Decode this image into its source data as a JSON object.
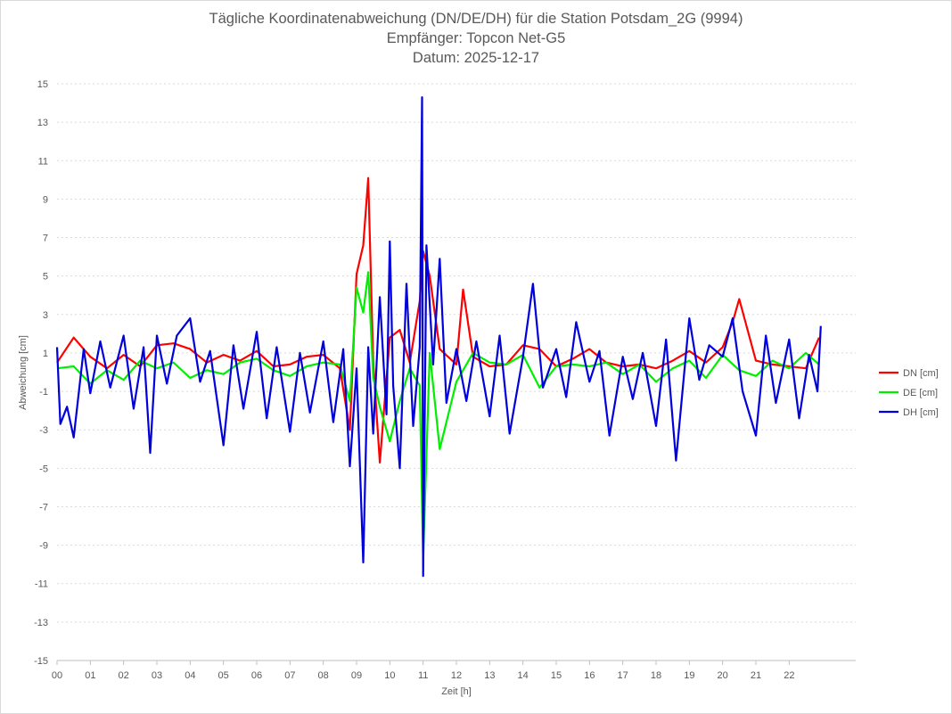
{
  "chart_data": {
    "type": "line",
    "title": "Tägliche Koordinatenabweichung (DN/DE/DH) für die Station Potsdam_2G (9994)",
    "subtitle1": "Empfänger: Topcon Net-G5",
    "subtitle2": "Datum: 2025-12-17",
    "xlabel": "Zeit [h]",
    "ylabel": "Abweichung [cm]",
    "xlim": [
      0,
      24
    ],
    "ylim": [
      -15,
      15
    ],
    "yticks": [
      15,
      13,
      11,
      9,
      7,
      5,
      3,
      1,
      -1,
      -3,
      -5,
      -7,
      -9,
      -11,
      -13,
      -15
    ],
    "xticks": [
      "00",
      "01",
      "02",
      "03",
      "04",
      "05",
      "06",
      "07",
      "08",
      "09",
      "10",
      "11",
      "12",
      "13",
      "14",
      "15",
      "16",
      "17",
      "18",
      "19",
      "20",
      "21",
      "22"
    ],
    "legend_position": "right",
    "grid": "horizontal-dotted",
    "series": [
      {
        "name": "DN [cm]",
        "color": "#ff0000",
        "x": [
          0,
          0.5,
          1,
          1.5,
          2,
          2.5,
          3,
          3.5,
          4,
          4.5,
          5,
          5.5,
          6,
          6.5,
          7,
          7.5,
          8,
          8.5,
          8.8,
          9.0,
          9.2,
          9.35,
          9.5,
          9.7,
          10.0,
          10.3,
          10.6,
          10.9,
          11.0,
          11.2,
          11.5,
          12.0,
          12.2,
          12.5,
          13.0,
          13.5,
          14.0,
          14.5,
          15.0,
          15.5,
          16.0,
          16.5,
          17.0,
          17.5,
          18.0,
          18.5,
          19.0,
          19.5,
          20.0,
          20.3,
          20.5,
          21.0,
          21.5,
          22.0,
          22.5,
          22.9
        ],
        "values": [
          0.5,
          1.8,
          0.8,
          0.2,
          0.9,
          0.3,
          1.4,
          1.5,
          1.2,
          0.5,
          0.9,
          0.6,
          1.1,
          0.3,
          0.4,
          0.8,
          0.9,
          0.2,
          -3.0,
          5.1,
          6.6,
          10.1,
          0.5,
          -4.7,
          1.8,
          2.2,
          0.5,
          3.7,
          6.3,
          5.0,
          1.2,
          0.4,
          4.3,
          0.8,
          0.3,
          0.4,
          1.4,
          1.2,
          0.3,
          0.7,
          1.2,
          0.5,
          0.3,
          0.4,
          0.2,
          0.6,
          1.1,
          0.5,
          1.3,
          2.6,
          3.8,
          0.6,
          0.4,
          0.3,
          0.2,
          1.8
        ]
      },
      {
        "name": "DE [cm]",
        "color": "#00ee00",
        "x": [
          0,
          0.5,
          1,
          1.5,
          2,
          2.5,
          3,
          3.5,
          4,
          4.5,
          5,
          5.5,
          6,
          6.5,
          7,
          7.5,
          8,
          8.5,
          8.8,
          9.0,
          9.2,
          9.35,
          9.5,
          9.7,
          10.0,
          10.3,
          10.6,
          10.9,
          11.0,
          11.2,
          11.5,
          12.0,
          12.5,
          13.0,
          13.5,
          14.0,
          14.5,
          15.0,
          15.5,
          16.0,
          16.5,
          17.0,
          17.5,
          18.0,
          18.5,
          19.0,
          19.5,
          20.0,
          20.5,
          21.0,
          21.5,
          22.0,
          22.5,
          22.9
        ],
        "values": [
          0.2,
          0.3,
          -0.6,
          0.1,
          -0.4,
          0.6,
          0.2,
          0.5,
          -0.3,
          0.1,
          -0.1,
          0.5,
          0.7,
          0.1,
          -0.2,
          0.3,
          0.5,
          0.4,
          -1.5,
          4.4,
          3.1,
          5.2,
          -0.3,
          -1.8,
          -3.6,
          -1.5,
          0.2,
          -0.7,
          -9.7,
          1.0,
          -4.0,
          -0.5,
          1.0,
          0.5,
          0.4,
          0.9,
          -0.8,
          0.3,
          0.4,
          0.3,
          0.5,
          -0.1,
          0.4,
          -0.5,
          0.2,
          0.6,
          -0.3,
          0.9,
          0.1,
          -0.2,
          0.6,
          0.2,
          1.0,
          0.4
        ]
      },
      {
        "name": "DH [cm]",
        "color": "#0000dd",
        "x": [
          0,
          0.1,
          0.3,
          0.5,
          0.8,
          1.0,
          1.3,
          1.6,
          2.0,
          2.3,
          2.6,
          2.8,
          3.0,
          3.3,
          3.6,
          4.0,
          4.3,
          4.6,
          5.0,
          5.3,
          5.6,
          6.0,
          6.3,
          6.6,
          7.0,
          7.3,
          7.6,
          8.0,
          8.3,
          8.6,
          8.8,
          9.0,
          9.2,
          9.35,
          9.5,
          9.7,
          9.9,
          10.0,
          10.1,
          10.3,
          10.5,
          10.7,
          10.9,
          10.97,
          11.0,
          11.1,
          11.3,
          11.5,
          11.7,
          12.0,
          12.3,
          12.6,
          13.0,
          13.3,
          13.6,
          14.0,
          14.3,
          14.6,
          15.0,
          15.3,
          15.6,
          16.0,
          16.3,
          16.6,
          17.0,
          17.3,
          17.6,
          18.0,
          18.3,
          18.6,
          19.0,
          19.3,
          19.6,
          20.0,
          20.3,
          20.6,
          21.0,
          21.3,
          21.6,
          22.0,
          22.3,
          22.6,
          22.85,
          22.95
        ],
        "values": [
          1.3,
          -2.7,
          -1.8,
          -3.4,
          1.2,
          -1.1,
          1.6,
          -0.8,
          1.9,
          -1.9,
          1.3,
          -4.2,
          1.9,
          -0.6,
          1.9,
          2.8,
          -0.5,
          1.1,
          -3.8,
          1.4,
          -1.9,
          2.1,
          -2.4,
          1.3,
          -3.1,
          1.0,
          -2.1,
          1.6,
          -2.6,
          1.2,
          -4.9,
          0.2,
          -9.9,
          1.3,
          -3.2,
          3.9,
          -2.2,
          6.8,
          -0.7,
          -5.0,
          4.6,
          -2.8,
          1.3,
          14.3,
          -10.6,
          6.6,
          0.4,
          5.9,
          -1.6,
          1.2,
          -1.5,
          1.6,
          -2.3,
          1.9,
          -3.2,
          0.8,
          4.6,
          -0.8,
          1.2,
          -1.3,
          2.6,
          -0.5,
          1.1,
          -3.3,
          0.8,
          -1.4,
          1.0,
          -2.8,
          1.7,
          -4.6,
          2.8,
          -0.4,
          1.4,
          0.8,
          2.8,
          -1.0,
          -3.3,
          1.9,
          -1.6,
          1.7,
          -2.4,
          0.9,
          -1.0,
          2.4
        ]
      }
    ]
  }
}
